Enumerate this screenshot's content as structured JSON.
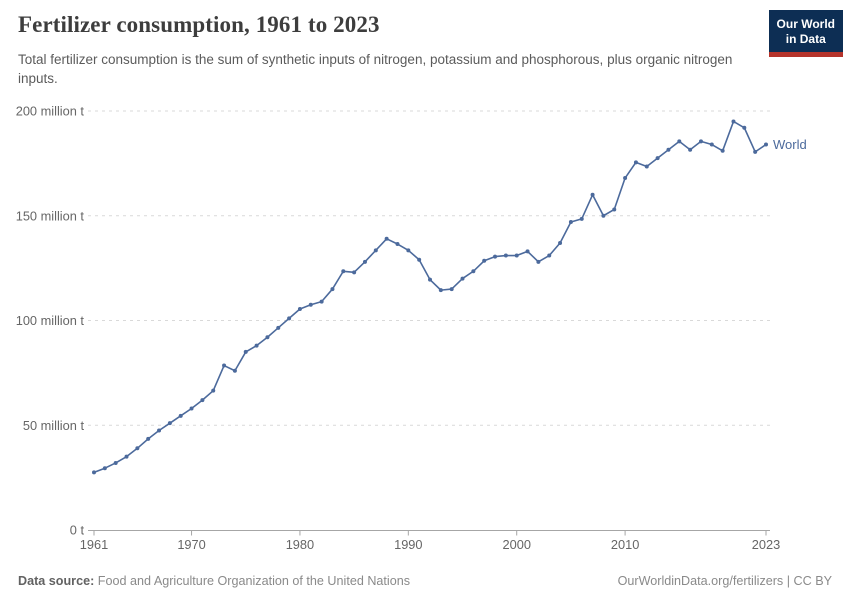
{
  "header": {
    "title": "Fertilizer consumption, 1961 to 2023",
    "subtitle": "Total fertilizer consumption is the sum of synthetic inputs of nitrogen, potassium and phosphorous, plus organic nitrogen inputs.",
    "logo": {
      "line1": "Our World",
      "line2": "in Data",
      "bg_color": "#0d2e54",
      "accent_color": "#b5332b"
    }
  },
  "chart_data": {
    "type": "line",
    "title": "Fertilizer consumption, 1961 to 2023",
    "xlabel": "",
    "ylabel": "",
    "unit": "million t",
    "xlim": [
      1961,
      2023
    ],
    "ylim": [
      0,
      200
    ],
    "grid": "horizontal dashed",
    "legend_position": "end-of-line label",
    "x_ticks": [
      1961,
      1970,
      1980,
      1990,
      2000,
      2010,
      2023
    ],
    "y_ticks": [
      {
        "value": 0,
        "label": "0 t"
      },
      {
        "value": 50,
        "label": "50 million t"
      },
      {
        "value": 100,
        "label": "100 million t"
      },
      {
        "value": 150,
        "label": "150 million t"
      },
      {
        "value": 200,
        "label": "200 million t"
      }
    ],
    "series": [
      {
        "name": "World",
        "color": "#4C6A9C",
        "years": [
          1961,
          1962,
          1963,
          1964,
          1965,
          1966,
          1967,
          1968,
          1969,
          1970,
          1971,
          1972,
          1973,
          1974,
          1975,
          1976,
          1977,
          1978,
          1979,
          1980,
          1981,
          1982,
          1983,
          1984,
          1985,
          1986,
          1987,
          1988,
          1989,
          1990,
          1991,
          1992,
          1993,
          1994,
          1995,
          1996,
          1997,
          1998,
          1999,
          2000,
          2001,
          2002,
          2003,
          2004,
          2005,
          2006,
          2007,
          2008,
          2009,
          2010,
          2011,
          2012,
          2013,
          2014,
          2015,
          2016,
          2017,
          2018,
          2019,
          2020,
          2021,
          2022,
          2023
        ],
        "values": [
          27.5,
          29.5,
          32,
          35,
          39,
          43.5,
          47.5,
          51,
          54.5,
          58,
          62,
          66.5,
          78.5,
          76,
          85,
          88,
          92,
          96.5,
          101,
          105.5,
          107.5,
          109,
          115,
          123.5,
          123,
          128,
          133.5,
          139,
          136.5,
          133.5,
          129,
          119.5,
          114.5,
          115,
          120,
          123.5,
          128.5,
          130.5,
          131,
          131,
          133,
          128,
          131,
          137,
          147,
          148.5,
          160,
          150,
          153,
          168,
          175.5,
          173.5,
          177.5,
          181.5,
          185.5,
          181.5,
          185.5,
          184,
          181,
          195,
          192,
          180.5,
          184
        ]
      }
    ]
  },
  "footer": {
    "datasource_label": "Data source:",
    "datasource": "Food and Agriculture Organization of the United Nations",
    "attribution": "OurWorldinData.org/fertilizers | CC BY"
  },
  "colors": {
    "grid": "#d9d9d9",
    "axis": "#a6a6a6",
    "tick_text": "#666666",
    "title_text": "#3d3d3d",
    "subtitle_text": "#5b5b5b"
  }
}
